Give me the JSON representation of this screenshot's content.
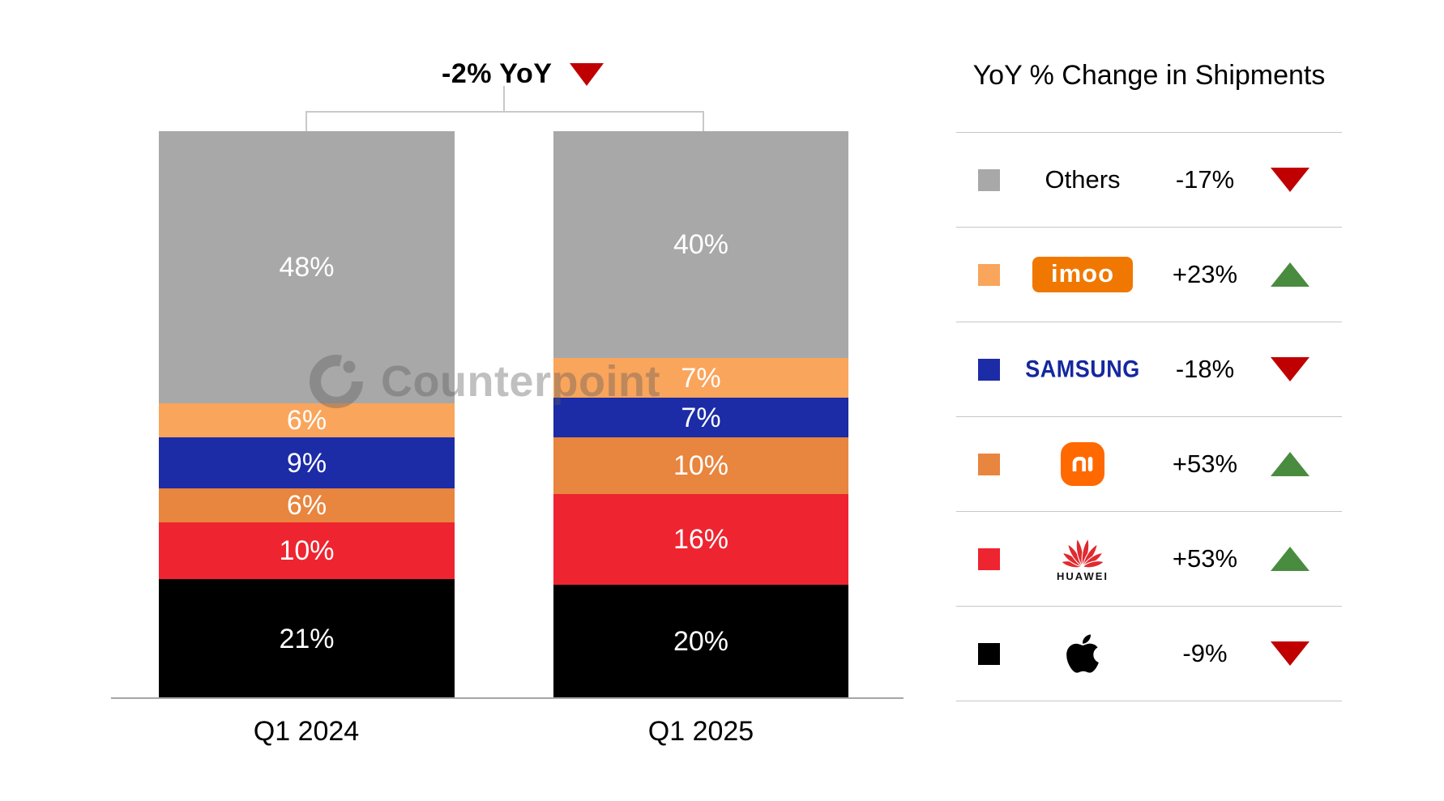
{
  "header": {
    "title": "-2% YoY",
    "trend": "down",
    "trend_icon": "red-down-triangle-icon"
  },
  "watermark": {
    "text": "Counterpoint",
    "logo": "counterpoint-c-logo"
  },
  "chart_data": {
    "type": "bar",
    "stacked": true,
    "unit": "%",
    "categories": [
      "Q1 2024",
      "Q1 2025"
    ],
    "series": [
      {
        "name": "Others",
        "color": "#A8A8A8",
        "values": [
          48,
          40
        ]
      },
      {
        "name": "imoo",
        "color": "#FAA55C",
        "values": [
          6,
          7
        ]
      },
      {
        "name": "Samsung",
        "color": "#1C2BA6",
        "values": [
          9,
          7
        ]
      },
      {
        "name": "Xiaomi",
        "color": "#E8853E",
        "values": [
          6,
          10
        ]
      },
      {
        "name": "Huawei",
        "color": "#EE2430",
        "values": [
          10,
          16
        ]
      },
      {
        "name": "Apple",
        "color": "#000000",
        "values": [
          21,
          20
        ]
      }
    ],
    "title": "-2% YoY",
    "xlabel": "",
    "ylabel": "",
    "ylim": [
      0,
      100
    ],
    "grid": false,
    "value_labels": [
      "48%",
      "6%",
      "9%",
      "6%",
      "10%",
      "21%",
      "40%",
      "7%",
      "7%",
      "10%",
      "16%",
      "20%"
    ],
    "legend_position": "right"
  },
  "legend": {
    "title": "YoY % Change in Shipments",
    "rows": [
      {
        "brand": "Others",
        "label": "Others",
        "logo": "none",
        "change": "-17%",
        "direction": "down",
        "swatch": "#A8A8A8"
      },
      {
        "brand": "imoo",
        "label": "imoo",
        "logo": "imoo-logo",
        "change": "+23%",
        "direction": "up",
        "swatch": "#FAA55C"
      },
      {
        "brand": "Samsung",
        "label": "SAMSUNG",
        "logo": "samsung-logo",
        "change": "-18%",
        "direction": "down",
        "swatch": "#1C2BA6"
      },
      {
        "brand": "Xiaomi",
        "label": "",
        "logo": "mi-logo",
        "change": "+53%",
        "direction": "up",
        "swatch": "#E8853E"
      },
      {
        "brand": "Huawei",
        "label": "HUAWEI",
        "logo": "huawei-logo",
        "change": "+53%",
        "direction": "up",
        "swatch": "#EE2430"
      },
      {
        "brand": "Apple",
        "label": "",
        "logo": "apple-logo",
        "change": "-9%",
        "direction": "down",
        "swatch": "#000000"
      }
    ]
  },
  "colors": {
    "up_triangle": "#4A8C3F",
    "down_triangle": "#C00000",
    "divider": "#C6C6C6",
    "axis": "#A6A6A6",
    "imoo_logo_bg": "#F07800",
    "samsung_wordmark": "#1428A0",
    "xiaomi_logo_bg": "#FF6900",
    "huawei_logo_red": "#E02A30"
  }
}
